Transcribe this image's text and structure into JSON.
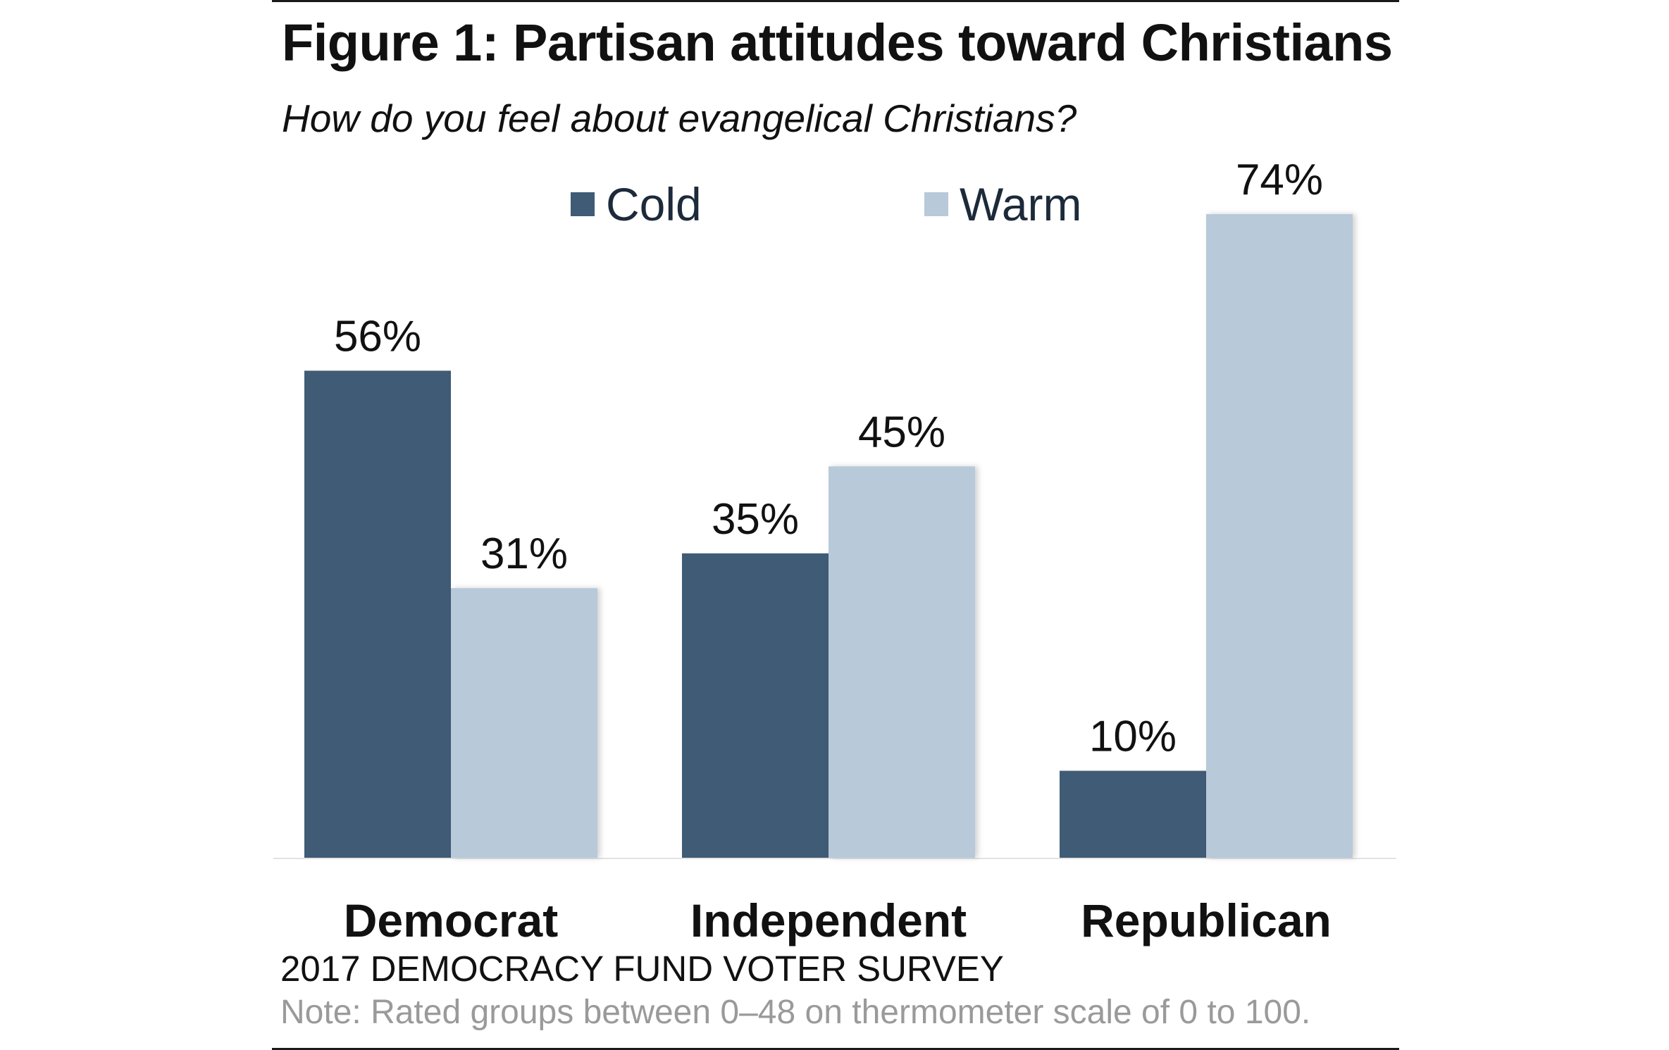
{
  "title": "Figure 1: Partisan attitudes toward Christians",
  "subtitle": "How do you feel about evangelical Christians?",
  "source": "2017 DEMOCRACY FUND VOTER SURVEY",
  "note": "Note: Rated groups between 0–48 on thermometer scale of 0 to 100.",
  "colors": {
    "cold": "#3f5b75",
    "warm": "#b8c9d9"
  },
  "chart_data": {
    "type": "bar",
    "title": "Figure 1: Partisan attitudes toward Christians",
    "subtitle": "How do you feel about evangelical Christians?",
    "categories": [
      "Democrat",
      "Independent",
      "Republican"
    ],
    "series": [
      {
        "name": "Cold",
        "values": [
          56,
          35,
          10
        ],
        "labels": [
          "56%",
          "35%",
          "10%"
        ]
      },
      {
        "name": "Warm",
        "values": [
          31,
          45,
          74
        ],
        "labels": [
          "31%",
          "45%",
          "74%"
        ]
      }
    ],
    "ylim": [
      0,
      100
    ],
    "unit": "%",
    "grid": false,
    "legend": "top-center"
  }
}
